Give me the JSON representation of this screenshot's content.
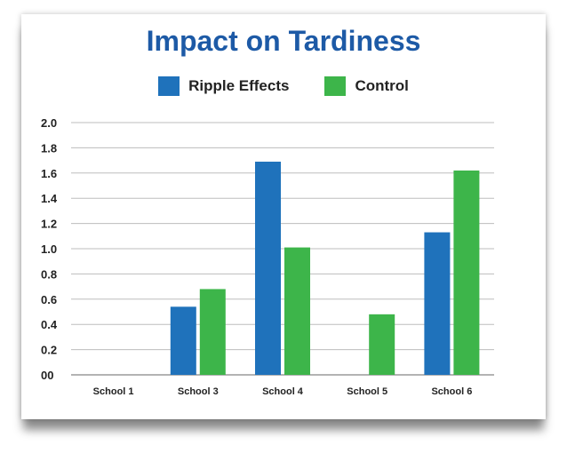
{
  "chart_data": {
    "type": "bar",
    "title": "Impact on Tardiness",
    "categories": [
      "School 1",
      "School 3",
      "School 4",
      "School 5",
      "School 6"
    ],
    "series": [
      {
        "name": "Ripple Effects",
        "color": "#1f72bb",
        "values": [
          null,
          0.54,
          1.69,
          null,
          1.13
        ]
      },
      {
        "name": "Control",
        "color": "#3db54a",
        "values": [
          null,
          0.68,
          1.01,
          0.48,
          1.62
        ]
      }
    ],
    "yticks": [
      "00",
      "0.2",
      "0.4",
      "0.6",
      "0.8",
      "1.0",
      "1.2",
      "1.4",
      "1.6",
      "1.8",
      "2.0"
    ],
    "ylim": [
      0,
      2.0
    ],
    "grid": true,
    "legend_position": "top-center",
    "xlabel": "",
    "ylabel": ""
  }
}
